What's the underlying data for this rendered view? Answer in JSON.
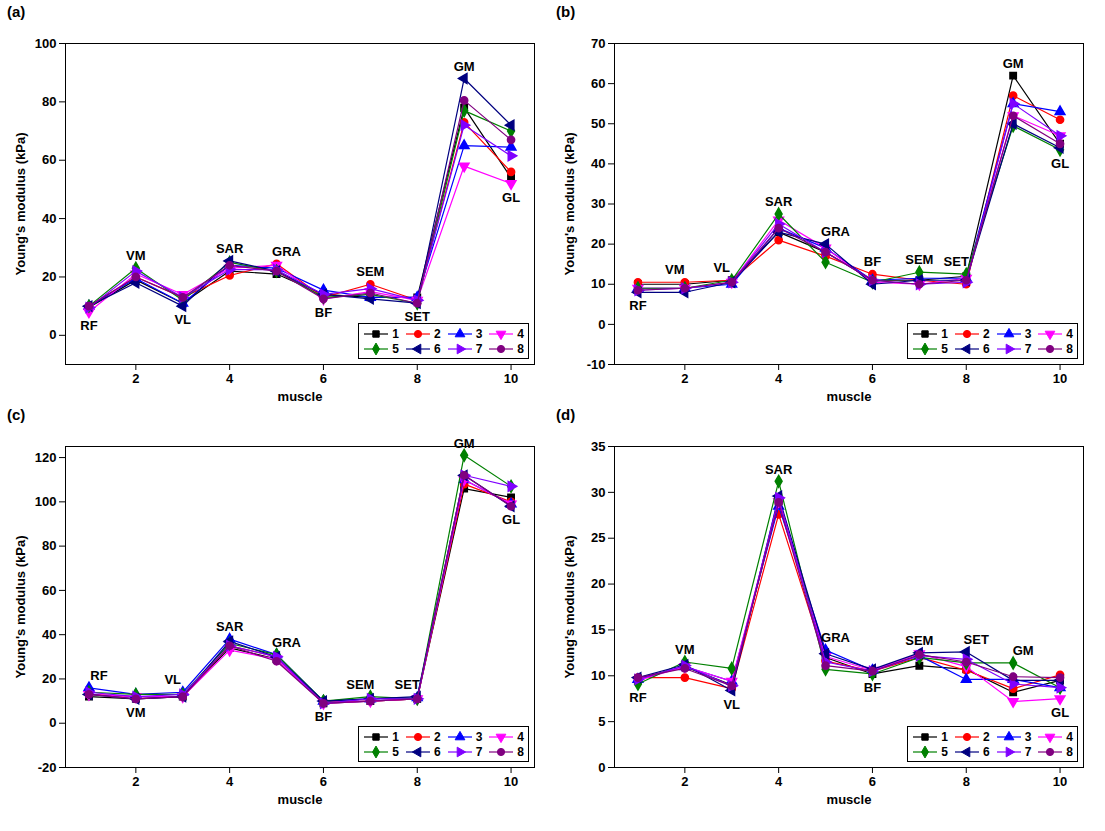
{
  "chart_data": [
    {
      "type": "line",
      "title": "(a)",
      "xlabel": "muscle",
      "ylabel": "Young's modulus (kPa)",
      "x": [
        1,
        2,
        3,
        4,
        5,
        6,
        7,
        8,
        9,
        10
      ],
      "xlim": [
        0.5,
        10.5
      ],
      "xticks": [
        2,
        4,
        6,
        8,
        10
      ],
      "ylim": [
        -10,
        100
      ],
      "yticks": [
        0,
        20,
        40,
        60,
        80,
        100
      ],
      "legend": "bottom-right",
      "annotations": [
        {
          "text": "RF",
          "x": 1
        },
        {
          "text": "VM",
          "x": 2
        },
        {
          "text": "VL",
          "x": 3
        },
        {
          "text": "SAR",
          "x": 4
        },
        {
          "text": "GRA",
          "x": 5
        },
        {
          "text": "BF",
          "x": 6
        },
        {
          "text": "SEM",
          "x": 7
        },
        {
          "text": "SET",
          "x": 8
        },
        {
          "text": "GM",
          "x": 9
        },
        {
          "text": "GL",
          "x": 10
        }
      ],
      "series": [
        {
          "name": "1",
          "color": "#000000",
          "marker": "square",
          "values": [
            9.5,
            19,
            11,
            22,
            21,
            14,
            13,
            13,
            78,
            54
          ]
        },
        {
          "name": "2",
          "color": "#ff0000",
          "marker": "circle",
          "values": [
            10,
            20,
            13,
            20.5,
            24.5,
            13,
            17.5,
            12,
            73,
            56
          ]
        },
        {
          "name": "3",
          "color": "#0000ff",
          "marker": "triangle-up",
          "values": [
            10,
            19.5,
            11,
            24,
            23,
            15.5,
            13,
            13,
            65,
            64.5
          ]
        },
        {
          "name": "4",
          "color": "#ff00ff",
          "marker": "triangle-down",
          "values": [
            8,
            21,
            14,
            23,
            24,
            12.5,
            15,
            12,
            58,
            52
          ]
        },
        {
          "name": "5",
          "color": "#008000",
          "marker": "diamond",
          "values": [
            10,
            23,
            12,
            25,
            22,
            13,
            14,
            11,
            77,
            70
          ]
        },
        {
          "name": "6",
          "color": "#000080",
          "marker": "triangle-left",
          "values": [
            10,
            18,
            10,
            25.5,
            22,
            14,
            12.5,
            11,
            88,
            72
          ]
        },
        {
          "name": "7",
          "color": "#8000ff",
          "marker": "triangle-right",
          "values": [
            9.5,
            22,
            13,
            22.5,
            22.5,
            14,
            16,
            12,
            72,
            61.5
          ]
        },
        {
          "name": "8",
          "color": "#800080",
          "marker": "circle",
          "values": [
            10,
            20,
            13,
            24,
            22,
            12.5,
            14.5,
            11,
            80.5,
            67
          ]
        }
      ]
    },
    {
      "type": "line",
      "title": "(b)",
      "xlabel": "muscle",
      "ylabel": "Young's modulus (kPa)",
      "x": [
        1,
        2,
        3,
        4,
        5,
        6,
        7,
        8,
        9,
        10
      ],
      "xlim": [
        0.5,
        10.5
      ],
      "xticks": [
        2,
        4,
        6,
        8,
        10
      ],
      "ylim": [
        -10,
        70
      ],
      "yticks": [
        -10,
        0,
        10,
        20,
        30,
        40,
        50,
        60,
        70
      ],
      "legend": "bottom-right",
      "annotations": [
        {
          "text": "RF",
          "x": 1
        },
        {
          "text": "VM",
          "x": 2
        },
        {
          "text": "VL",
          "x": 3
        },
        {
          "text": "SAR",
          "x": 4
        },
        {
          "text": "GRA",
          "x": 5
        },
        {
          "text": "BF",
          "x": 6
        },
        {
          "text": "SEM",
          "x": 7
        },
        {
          "text": "SET",
          "x": 8
        },
        {
          "text": "GM",
          "x": 9
        },
        {
          "text": "GL",
          "x": 10
        }
      ],
      "series": [
        {
          "name": "1",
          "color": "#000000",
          "marker": "square",
          "values": [
            10,
            10,
            11,
            23,
            18,
            11,
            11,
            12,
            62,
            45
          ]
        },
        {
          "name": "2",
          "color": "#ff0000",
          "marker": "circle",
          "values": [
            10.5,
            10.5,
            11,
            21,
            17,
            12.5,
            11,
            10,
            57,
            51
          ]
        },
        {
          "name": "3",
          "color": "#0000ff",
          "marker": "triangle-up",
          "values": [
            9,
            9,
            10,
            24,
            19,
            11,
            11.5,
            11.5,
            55,
            53
          ]
        },
        {
          "name": "4",
          "color": "#ff00ff",
          "marker": "triangle-down",
          "values": [
            9,
            9,
            10.5,
            26,
            19,
            10.5,
            10,
            11.5,
            52,
            47
          ]
        },
        {
          "name": "5",
          "color": "#008000",
          "marker": "diamond",
          "values": [
            9,
            9,
            11,
            27.5,
            15.5,
            10.5,
            13,
            12.5,
            49.5,
            43.5
          ]
        },
        {
          "name": "6",
          "color": "#000080",
          "marker": "triangle-left",
          "values": [
            8,
            8,
            10.5,
            23,
            20,
            10,
            11,
            11,
            50,
            44
          ]
        },
        {
          "name": "7",
          "color": "#8000ff",
          "marker": "triangle-right",
          "values": [
            8.5,
            9,
            10.5,
            25,
            18,
            11,
            10,
            10.5,
            55,
            47
          ]
        },
        {
          "name": "8",
          "color": "#800080",
          "marker": "circle",
          "values": [
            8.5,
            9,
            10.5,
            24,
            18,
            11,
            10,
            11,
            52,
            45
          ]
        }
      ]
    },
    {
      "type": "line",
      "title": "(c)",
      "xlabel": "muscle",
      "ylabel": "Young's modulus (kPa)",
      "x": [
        1,
        2,
        3,
        4,
        5,
        6,
        7,
        8,
        9,
        10
      ],
      "xlim": [
        0.5,
        10.5
      ],
      "xticks": [
        2,
        4,
        6,
        8,
        10
      ],
      "ylim": [
        -20,
        125
      ],
      "yticks": [
        -20,
        0,
        20,
        40,
        60,
        80,
        100,
        120
      ],
      "legend": "bottom-right",
      "annotations": [
        {
          "text": "RF",
          "x": 1
        },
        {
          "text": "VM",
          "x": 2
        },
        {
          "text": "VL",
          "x": 3
        },
        {
          "text": "SAR",
          "x": 4
        },
        {
          "text": "GRA",
          "x": 5
        },
        {
          "text": "BF",
          "x": 6
        },
        {
          "text": "SEM",
          "x": 7
        },
        {
          "text": "SET",
          "x": 8
        },
        {
          "text": "GM",
          "x": 9
        },
        {
          "text": "GL",
          "x": 10
        }
      ],
      "series": [
        {
          "name": "1",
          "color": "#000000",
          "marker": "square",
          "values": [
            12,
            11,
            12,
            34,
            29,
            9,
            10,
            11,
            106,
            102
          ]
        },
        {
          "name": "2",
          "color": "#ff0000",
          "marker": "circle",
          "values": [
            13,
            12,
            12,
            35,
            30,
            9.5,
            10,
            11,
            108,
            100
          ]
        },
        {
          "name": "3",
          "color": "#0000ff",
          "marker": "triangle-up",
          "values": [
            16,
            13,
            14,
            38,
            31,
            10,
            11,
            11.5,
            110,
            99
          ]
        },
        {
          "name": "4",
          "color": "#ff00ff",
          "marker": "triangle-down",
          "values": [
            13,
            12,
            12,
            33,
            29,
            9,
            10,
            11,
            110,
            99
          ]
        },
        {
          "name": "5",
          "color": "#008000",
          "marker": "diamond",
          "values": [
            14,
            13,
            13,
            36,
            31,
            10,
            12,
            11,
            121,
            107
          ]
        },
        {
          "name": "6",
          "color": "#000080",
          "marker": "triangle-left",
          "values": [
            13,
            11,
            12,
            37,
            30,
            10,
            11,
            12,
            112,
            98
          ]
        },
        {
          "name": "7",
          "color": "#8000ff",
          "marker": "triangle-right",
          "values": [
            14,
            12,
            13,
            35,
            30,
            9,
            11,
            11,
            112,
            107
          ]
        },
        {
          "name": "8",
          "color": "#800080",
          "marker": "circle",
          "values": [
            13,
            11,
            12,
            35,
            28,
            9,
            10,
            11,
            112,
            98
          ]
        }
      ]
    },
    {
      "type": "line",
      "title": "(d)",
      "xlabel": "muscle",
      "ylabel": "Young's modulus (kPa)",
      "x": [
        1,
        2,
        3,
        4,
        5,
        6,
        7,
        8,
        9,
        10
      ],
      "xlim": [
        0.5,
        10.5
      ],
      "xticks": [
        2,
        4,
        6,
        8,
        10
      ],
      "ylim": [
        0,
        35
      ],
      "yticks": [
        0,
        5,
        10,
        15,
        20,
        25,
        30,
        35
      ],
      "legend": "bottom-right",
      "annotations": [
        {
          "text": "RF",
          "x": 1
        },
        {
          "text": "VM",
          "x": 2
        },
        {
          "text": "VL",
          "x": 3
        },
        {
          "text": "SAR",
          "x": 4
        },
        {
          "text": "GRA",
          "x": 5
        },
        {
          "text": "BF",
          "x": 6
        },
        {
          "text": "SEM",
          "x": 7
        },
        {
          "text": "SET",
          "x": 8
        },
        {
          "text": "GM",
          "x": 9
        },
        {
          "text": "GL",
          "x": 10
        }
      ],
      "series": [
        {
          "name": "1",
          "color": "#000000",
          "marker": "square",
          "values": [
            9.7,
            11,
            9,
            29,
            12,
            10.2,
            11.1,
            10.7,
            8.2,
            9.5
          ]
        },
        {
          "name": "2",
          "color": "#ff0000",
          "marker": "circle",
          "values": [
            9.8,
            9.8,
            8.6,
            27.6,
            11.6,
            10.5,
            12,
            10.6,
            8.6,
            10.1
          ]
        },
        {
          "name": "3",
          "color": "#0000ff",
          "marker": "triangle-up",
          "values": [
            9.6,
            11,
            9.4,
            28.5,
            12.8,
            10.6,
            12.2,
            9.6,
            9.6,
            8.7
          ]
        },
        {
          "name": "4",
          "color": "#ff00ff",
          "marker": "triangle-down",
          "values": [
            9.5,
            11,
            9.4,
            29,
            12.1,
            10.6,
            12.4,
            11,
            7.2,
            7.5
          ]
        },
        {
          "name": "5",
          "color": "#008000",
          "marker": "diamond",
          "values": [
            9.1,
            11.5,
            10.8,
            31.2,
            10.7,
            10.2,
            12,
            11.4,
            11.4,
            8.7
          ]
        },
        {
          "name": "6",
          "color": "#000080",
          "marker": "triangle-left",
          "values": [
            9.8,
            11.2,
            8.4,
            29.6,
            12.4,
            10.7,
            12.5,
            12.6,
            9.5,
            9.5
          ]
        },
        {
          "name": "7",
          "color": "#8000ff",
          "marker": "triangle-right",
          "values": [
            9.6,
            11.1,
            8.9,
            29.4,
            11.5,
            10.5,
            12.2,
            11.8,
            9.1,
            8.7
          ]
        },
        {
          "name": "8",
          "color": "#800080",
          "marker": "circle",
          "values": [
            9.8,
            10.8,
            8.9,
            28.9,
            11.1,
            10.5,
            12.3,
            11.5,
            9.9,
            9.8
          ]
        }
      ]
    }
  ]
}
